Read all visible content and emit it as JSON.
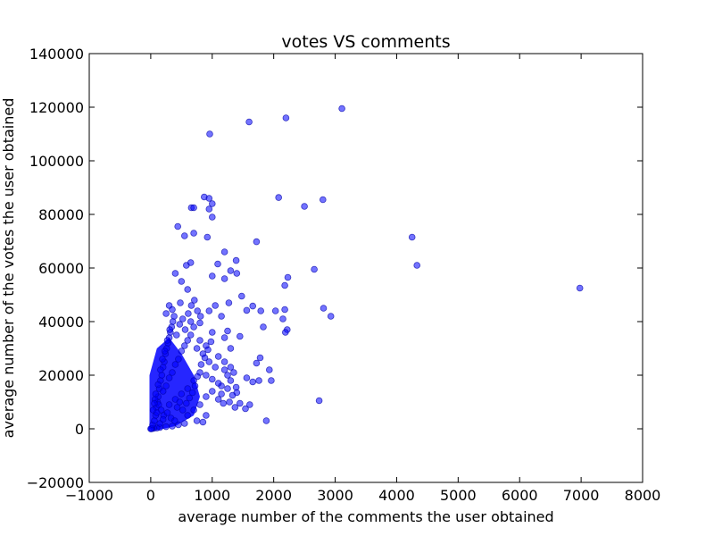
{
  "chart_data": {
    "type": "scatter",
    "title": "votes VS comments",
    "xlabel": "average number of the comments the user obtained",
    "ylabel": "average number of the votes the user obtained",
    "xlim": [
      -1000,
      8000
    ],
    "ylim": [
      -20000,
      140000
    ],
    "xticks": [
      -1000,
      0,
      1000,
      2000,
      3000,
      4000,
      5000,
      6000,
      7000,
      8000
    ],
    "yticks": [
      -20000,
      0,
      20000,
      40000,
      60000,
      80000,
      100000,
      120000,
      140000
    ],
    "xtick_labels": [
      "−1000",
      "0",
      "1000",
      "2000",
      "3000",
      "4000",
      "5000",
      "6000",
      "7000",
      "8000"
    ],
    "ytick_labels": [
      "−20000",
      "0",
      "20000",
      "40000",
      "60000",
      "80000",
      "100000",
      "120000",
      "140000"
    ],
    "grid": false,
    "marker_color": "#0000ff",
    "marker_edge_color": "#0000aa",
    "marker_alpha": 0.55,
    "points": [
      [
        3110,
        119500
      ],
      [
        2200,
        116000
      ],
      [
        1600,
        114500
      ],
      [
        960,
        110000
      ],
      [
        870,
        86500
      ],
      [
        2080,
        86300
      ],
      [
        950,
        86000
      ],
      [
        2800,
        85500
      ],
      [
        1000,
        84000
      ],
      [
        2500,
        83000
      ],
      [
        660,
        82500
      ],
      [
        700,
        82500
      ],
      [
        950,
        82000
      ],
      [
        1000,
        79000
      ],
      [
        440,
        75500
      ],
      [
        700,
        73000
      ],
      [
        550,
        72000
      ],
      [
        920,
        71500
      ],
      [
        4250,
        71500
      ],
      [
        1720,
        69800
      ],
      [
        1200,
        66000
      ],
      [
        1090,
        61500
      ],
      [
        1390,
        62800
      ],
      [
        4330,
        61000
      ],
      [
        1300,
        59000
      ],
      [
        2660,
        59500
      ],
      [
        1400,
        58000
      ],
      [
        1000,
        57000
      ],
      [
        2230,
        56500
      ],
      [
        1200,
        56000
      ],
      [
        2180,
        53500
      ],
      [
        6980,
        52500
      ],
      [
        1480,
        49500
      ],
      [
        1270,
        47000
      ],
      [
        1050,
        46000
      ],
      [
        1660,
        45800
      ],
      [
        1560,
        44200
      ],
      [
        2030,
        44000
      ],
      [
        1790,
        44000
      ],
      [
        2180,
        44500
      ],
      [
        2810,
        45000
      ],
      [
        2930,
        42000
      ],
      [
        2150,
        41000
      ],
      [
        1830,
        38000
      ],
      [
        2220,
        37000
      ],
      [
        2190,
        36000
      ],
      [
        1450,
        34500
      ],
      [
        1250,
        36500
      ],
      [
        1780,
        26500
      ],
      [
        1930,
        22000
      ],
      [
        1720,
        24500
      ],
      [
        1660,
        17500
      ],
      [
        1760,
        18000
      ],
      [
        1560,
        19000
      ],
      [
        1960,
        18000
      ],
      [
        1390,
        15500
      ],
      [
        1400,
        13500
      ],
      [
        1330,
        12500
      ],
      [
        1280,
        10000
      ],
      [
        1180,
        9500
      ],
      [
        1540,
        7500
      ],
      [
        1370,
        8000
      ],
      [
        2740,
        10500
      ],
      [
        1880,
        3000
      ],
      [
        1610,
        9000
      ],
      [
        1450,
        9500
      ],
      [
        900,
        5000
      ],
      [
        1100,
        11000
      ],
      [
        650,
        40000
      ],
      [
        700,
        38000
      ],
      [
        800,
        39500
      ],
      [
        950,
        44000
      ],
      [
        1150,
        42000
      ],
      [
        1000,
        36000
      ],
      [
        1200,
        34000
      ],
      [
        1300,
        30000
      ],
      [
        500,
        55000
      ],
      [
        600,
        52000
      ],
      [
        400,
        58000
      ],
      [
        580,
        61000
      ],
      [
        650,
        62000
      ],
      [
        480,
        47000
      ],
      [
        300,
        46000
      ],
      [
        250,
        43000
      ],
      [
        350,
        44500
      ],
      [
        800,
        33000
      ],
      [
        900,
        31000
      ],
      [
        1100,
        27000
      ],
      [
        1050,
        23000
      ],
      [
        950,
        25000
      ],
      [
        850,
        28000
      ],
      [
        750,
        30000
      ],
      [
        1200,
        22000
      ],
      [
        1250,
        20000
      ],
      [
        1150,
        16000
      ],
      [
        1000,
        14000
      ],
      [
        900,
        12000
      ],
      [
        800,
        9000
      ],
      [
        700,
        7000
      ],
      [
        600,
        5000
      ],
      [
        750,
        3000
      ],
      [
        850,
        2500
      ],
      [
        550,
        2000
      ],
      [
        450,
        1500
      ],
      [
        350,
        1000
      ],
      [
        250,
        800
      ],
      [
        150,
        500
      ],
      [
        100,
        300
      ],
      [
        50,
        200
      ],
      [
        20,
        100
      ],
      [
        10,
        50
      ],
      [
        0,
        0
      ],
      [
        30,
        1500
      ],
      [
        60,
        3000
      ],
      [
        80,
        5000
      ],
      [
        90,
        8000
      ],
      [
        110,
        10000
      ],
      [
        120,
        12000
      ],
      [
        140,
        15000
      ],
      [
        160,
        18000
      ],
      [
        180,
        20000
      ],
      [
        200,
        23000
      ],
      [
        220,
        25000
      ],
      [
        240,
        28000
      ],
      [
        260,
        30000
      ],
      [
        280,
        32000
      ],
      [
        300,
        34000
      ],
      [
        320,
        36000
      ],
      [
        340,
        38000
      ],
      [
        360,
        40000
      ],
      [
        380,
        42000
      ],
      [
        200,
        14000
      ],
      [
        250,
        16000
      ],
      [
        300,
        19000
      ],
      [
        350,
        21000
      ],
      [
        400,
        24000
      ],
      [
        450,
        26000
      ],
      [
        500,
        29000
      ],
      [
        550,
        31000
      ],
      [
        600,
        33000
      ],
      [
        650,
        35000
      ],
      [
        300,
        9000
      ],
      [
        400,
        11000
      ],
      [
        500,
        13000
      ],
      [
        600,
        15000
      ],
      [
        700,
        18000
      ],
      [
        800,
        21000
      ],
      [
        900,
        20000
      ],
      [
        1000,
        18500
      ],
      [
        1100,
        17000
      ],
      [
        1200,
        25000
      ],
      [
        1300,
        23000
      ],
      [
        1350,
        21000
      ],
      [
        1300,
        18000
      ],
      [
        1250,
        15000
      ],
      [
        1150,
        13000
      ],
      [
        40,
        7000
      ],
      [
        70,
        11000
      ],
      [
        130,
        9000
      ],
      [
        170,
        7000
      ],
      [
        210,
        5000
      ],
      [
        270,
        6000
      ],
      [
        330,
        4000
      ],
      [
        390,
        3000
      ],
      [
        430,
        8000
      ],
      [
        470,
        10000
      ],
      [
        520,
        7000
      ],
      [
        580,
        9500
      ],
      [
        630,
        11500
      ],
      [
        680,
        13500
      ],
      [
        720,
        16000
      ],
      [
        760,
        19500
      ],
      [
        820,
        24000
      ],
      [
        880,
        26500
      ],
      [
        930,
        29500
      ],
      [
        980,
        32500
      ],
      [
        150,
        2000
      ],
      [
        200,
        3500
      ],
      [
        100,
        6000
      ],
      [
        60,
        9500
      ],
      [
        80,
        13000
      ],
      [
        120,
        16500
      ],
      [
        160,
        22000
      ],
      [
        190,
        26000
      ],
      [
        230,
        29000
      ],
      [
        270,
        33000
      ],
      [
        310,
        37000
      ],
      [
        420,
        35000
      ],
      [
        470,
        39000
      ],
      [
        520,
        41000
      ],
      [
        560,
        37000
      ],
      [
        610,
        43000
      ],
      [
        660,
        46000
      ],
      [
        710,
        48000
      ],
      [
        760,
        44000
      ],
      [
        810,
        42000
      ]
    ]
  }
}
